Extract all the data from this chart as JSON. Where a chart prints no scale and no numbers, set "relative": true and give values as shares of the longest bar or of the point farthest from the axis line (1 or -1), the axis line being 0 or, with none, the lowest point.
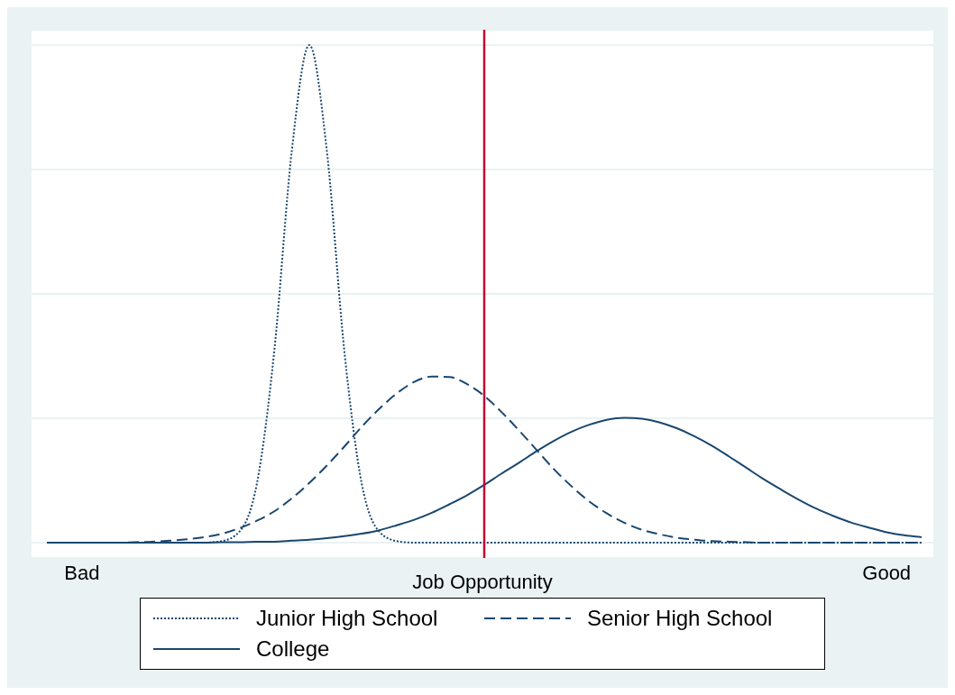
{
  "chart_data": {
    "type": "line",
    "xlabel": "Job Opportunity",
    "relative": true,
    "grid": "y",
    "legend": "bottom",
    "categories": [
      null,
      null,
      "Bad",
      null,
      null,
      null,
      null,
      null,
      null,
      null,
      null,
      null,
      null,
      null,
      null,
      null,
      null,
      null,
      null,
      null,
      null,
      null,
      null,
      null,
      null,
      null,
      null,
      null,
      null,
      null,
      null,
      null,
      null,
      null,
      null,
      null,
      null,
      null,
      null,
      null,
      null,
      null,
      null,
      null,
      null,
      null,
      null,
      null,
      "Good",
      null,
      null
    ],
    "series": [
      {
        "name": "Junior High School",
        "color": "#1a476f",
        "line_style": "dotted",
        "values": [
          0,
          0,
          0,
          0,
          0,
          0,
          0,
          0,
          0,
          0,
          0.003,
          0.022,
          0.118,
          0.386,
          0.788,
          1,
          0.788,
          0.386,
          0.118,
          0.022,
          0.003,
          0,
          0,
          0,
          0,
          0,
          0,
          0,
          0,
          0,
          0,
          0,
          0,
          0,
          0,
          0,
          0,
          0,
          0,
          0,
          0,
          0,
          0,
          0,
          0,
          0,
          0,
          0,
          0,
          0,
          0
        ]
      },
      {
        "name": "Senior High School",
        "color": "#1a476f",
        "line_style": "dashed",
        "values": [
          0,
          0,
          0,
          0,
          0,
          0.001,
          0.002,
          0.004,
          0.007,
          0.011,
          0.018,
          0.029,
          0.044,
          0.063,
          0.089,
          0.12,
          0.155,
          0.193,
          0.233,
          0.269,
          0.3,
          0.323,
          0.334,
          0.333,
          0.319,
          0.295,
          0.262,
          0.225,
          0.186,
          0.147,
          0.113,
          0.083,
          0.059,
          0.04,
          0.026,
          0.017,
          0.01,
          0.006,
          0.003,
          0.002,
          0.001,
          0,
          0,
          0,
          0,
          0,
          0,
          0,
          0,
          0,
          0
        ]
      },
      {
        "name": "College",
        "color": "#1a476f",
        "line_style": "solid",
        "values": [
          0,
          0,
          0,
          0,
          0,
          0,
          0,
          0,
          0,
          0,
          0.001,
          0.001,
          0.002,
          0.002,
          0.004,
          0.006,
          0.009,
          0.013,
          0.018,
          0.025,
          0.035,
          0.046,
          0.06,
          0.077,
          0.095,
          0.116,
          0.139,
          0.161,
          0.184,
          0.205,
          0.223,
          0.237,
          0.247,
          0.251,
          0.249,
          0.242,
          0.23,
          0.214,
          0.195,
          0.173,
          0.15,
          0.127,
          0.106,
          0.086,
          0.068,
          0.053,
          0.04,
          0.03,
          0.021,
          0.015,
          0.011
        ]
      }
    ]
  }
}
